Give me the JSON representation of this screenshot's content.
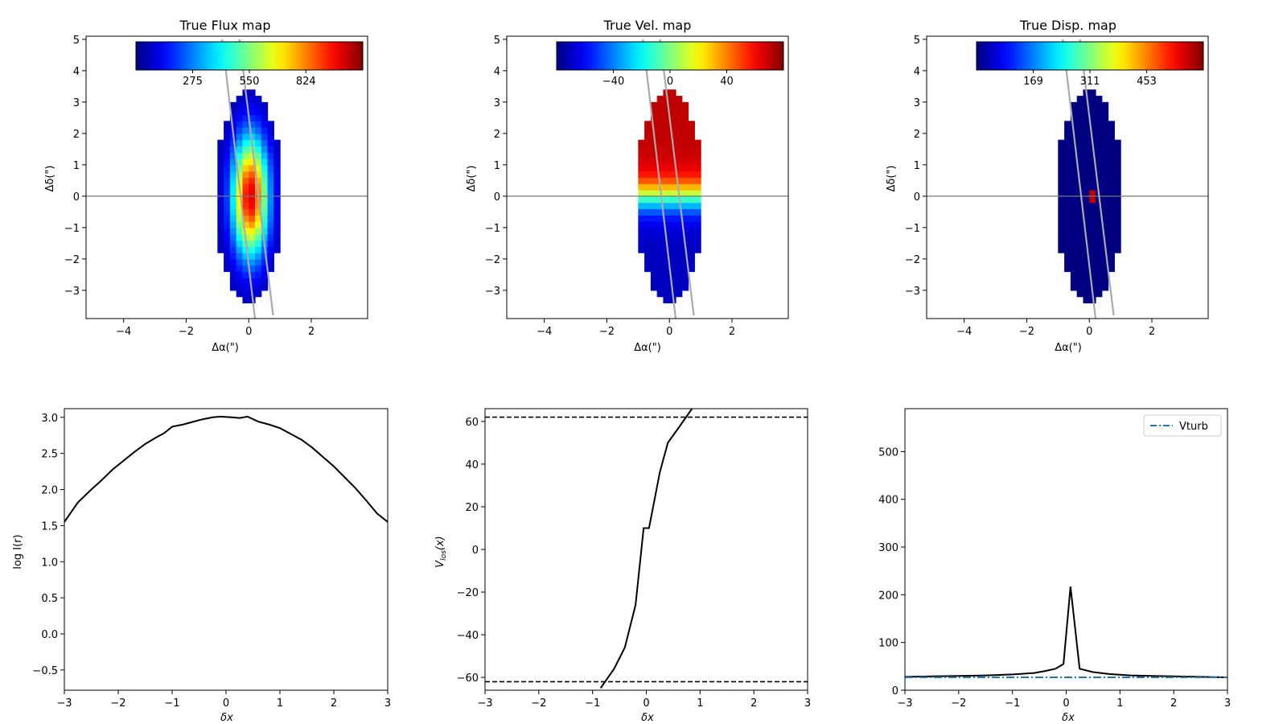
{
  "figure": {
    "background": "#ffffff",
    "colormap": "jet"
  },
  "maps": [
    {
      "id": "flux",
      "title": "True Flux map",
      "xlabel": "Δα(\")",
      "ylabel": "Δδ(\")",
      "xlim": [
        -5.2,
        3.8
      ],
      "ylim": [
        -3.9,
        5.1
      ],
      "xticks": [
        -4,
        -2,
        0,
        2
      ],
      "xtick_labels": [
        "−4",
        "−2",
        "0",
        "2"
      ],
      "yticks": [
        -3,
        -2,
        -1,
        0,
        1,
        2,
        3,
        4,
        5
      ],
      "ytick_labels": [
        "−3",
        "−2",
        "−1",
        "0",
        "1",
        "2",
        "3",
        "4",
        "5"
      ],
      "colorbar": {
        "min": 0,
        "max": 1100,
        "tick_values": [
          275,
          550,
          824
        ],
        "tick_labels": [
          "275",
          "550",
          "824"
        ]
      },
      "field": "flux"
    },
    {
      "id": "velocity",
      "title": "True Vel. map",
      "xlabel": "Δα(\")",
      "ylabel": "Δδ(\")",
      "xlim": [
        -5.2,
        3.8
      ],
      "ylim": [
        -3.9,
        5.1
      ],
      "xticks": [
        -4,
        -2,
        0,
        2
      ],
      "xtick_labels": [
        "−4",
        "−2",
        "0",
        "2"
      ],
      "yticks": [
        -3,
        -2,
        -1,
        0,
        1,
        2,
        3,
        4,
        5
      ],
      "ytick_labels": [
        "−3",
        "−2",
        "−1",
        "0",
        "1",
        "2",
        "3",
        "4",
        "5"
      ],
      "colorbar": {
        "min": -80,
        "max": 80,
        "tick_values": [
          -40,
          0,
          40
        ],
        "tick_labels": [
          "−40",
          "0",
          "40"
        ]
      },
      "field": "velocity"
    },
    {
      "id": "dispersion",
      "title": "True Disp. map",
      "xlabel": "Δα(\")",
      "ylabel": "Δδ(\")",
      "xlim": [
        -5.2,
        3.8
      ],
      "ylim": [
        -3.9,
        5.1
      ],
      "xticks": [
        -4,
        -2,
        0,
        2
      ],
      "xtick_labels": [
        "−4",
        "−2",
        "0",
        "2"
      ],
      "yticks": [
        -3,
        -2,
        -1,
        0,
        1,
        2,
        3,
        4,
        5
      ],
      "ytick_labels": [
        "−3",
        "−2",
        "−1",
        "0",
        "1",
        "2",
        "3",
        "4",
        "5"
      ],
      "colorbar": {
        "min": 27,
        "max": 595,
        "tick_values": [
          169,
          311,
          453
        ],
        "tick_labels": [
          "169",
          "311",
          "453"
        ]
      },
      "field": "dispersion"
    }
  ],
  "map_model": {
    "pixel_size": 0.2,
    "center": [
      0.0,
      0.0
    ],
    "semi_major": 3.3,
    "semi_minor": 1.0,
    "flux_peak": 1000,
    "flux_floor": 35,
    "velocity_amplitude": 70,
    "dispersion_base": 28,
    "dispersion_center": 560,
    "slit_lines": [
      {
        "from": [
          -0.85,
          5.0
        ],
        "to": [
          0.2,
          -3.9
        ]
      },
      {
        "from": [
          -0.3,
          5.0
        ],
        "to": [
          0.78,
          -3.8
        ]
      }
    ],
    "zero_line_y": 0
  },
  "chart_data": [
    {
      "type": "line",
      "title": "",
      "xlabel": "δx",
      "ylabel": "log I(r)",
      "xlim": [
        -3,
        3
      ],
      "ylim": [
        -0.78,
        3.12
      ],
      "xticks": [
        -3,
        -2,
        -1,
        0,
        1,
        2,
        3
      ],
      "xtick_labels": [
        "−3",
        "−2",
        "−1",
        "0",
        "1",
        "2",
        "3"
      ],
      "yticks": [
        -0.5,
        0.0,
        0.5,
        1.0,
        1.5,
        2.0,
        2.5,
        3.0
      ],
      "ytick_labels": [
        "−0.5",
        "0.0",
        "0.5",
        "1.0",
        "1.5",
        "2.0",
        "2.5",
        "3.0"
      ],
      "series": [
        {
          "color": "#000000",
          "style": "solid",
          "x": [
            -3.0,
            -2.75,
            -2.5,
            -2.35,
            -2.1,
            -1.9,
            -1.7,
            -1.5,
            -1.3,
            -1.15,
            -1.0,
            -0.8,
            -0.6,
            -0.45,
            -0.25,
            -0.1,
            0.1,
            0.25,
            0.4,
            0.6,
            0.8,
            1.0,
            1.2,
            1.4,
            1.6,
            1.8,
            2.0,
            2.2,
            2.4,
            2.6,
            2.8,
            3.0
          ],
          "y": [
            1.55,
            1.82,
            2.0,
            2.1,
            2.28,
            2.4,
            2.52,
            2.63,
            2.72,
            2.78,
            2.87,
            2.9,
            2.94,
            2.97,
            3.0,
            3.01,
            3.0,
            2.99,
            3.01,
            2.94,
            2.9,
            2.85,
            2.77,
            2.69,
            2.58,
            2.45,
            2.32,
            2.17,
            2.02,
            1.85,
            1.67,
            1.55
          ]
        }
      ]
    },
    {
      "type": "line",
      "title": "",
      "xlabel": "δx",
      "ylabel": "V_los(x)",
      "xlim": [
        -3,
        3
      ],
      "ylim": [
        -66,
        66
      ],
      "xticks": [
        -3,
        -2,
        -1,
        0,
        1,
        2,
        3
      ],
      "xtick_labels": [
        "−3",
        "−2",
        "−1",
        "0",
        "1",
        "2",
        "3"
      ],
      "yticks": [
        -60,
        -40,
        -20,
        0,
        20,
        40,
        60
      ],
      "ytick_labels": [
        "−60",
        "−40",
        "−20",
        "0",
        "20",
        "40",
        "60"
      ],
      "hlines": [
        62,
        -62
      ],
      "series": [
        {
          "color": "#000000",
          "style": "solid",
          "x": [
            -0.85,
            -0.6,
            -0.4,
            -0.2,
            -0.05,
            0.05,
            0.25,
            0.4,
            0.6,
            0.85
          ],
          "y": [
            -65,
            -56,
            -46,
            -26,
            10,
            10,
            36,
            50,
            57,
            66
          ]
        }
      ]
    },
    {
      "type": "line",
      "title": "",
      "xlabel": "δx",
      "ylabel": "",
      "xlim": [
        -3,
        3
      ],
      "ylim": [
        0,
        590
      ],
      "xticks": [
        -3,
        -2,
        -1,
        0,
        1,
        2,
        3
      ],
      "xtick_labels": [
        "−3",
        "−2",
        "−1",
        "0",
        "1",
        "2",
        "3"
      ],
      "yticks": [
        0,
        100,
        200,
        300,
        400,
        500
      ],
      "ytick_labels": [
        "0",
        "100",
        "200",
        "300",
        "400",
        "500"
      ],
      "legend": {
        "placement": "top-right",
        "entries": [
          "Vturb"
        ]
      },
      "series": [
        {
          "color": "#000000",
          "style": "solid",
          "x": [
            -3.0,
            -2.5,
            -2.0,
            -1.5,
            -1.0,
            -0.6,
            -0.4,
            -0.2,
            -0.05,
            0.08,
            0.25,
            0.5,
            0.8,
            1.2,
            1.6,
            2.0,
            2.5,
            3.0
          ],
          "y": [
            28,
            29,
            30,
            31,
            33,
            36,
            40,
            45,
            55,
            217,
            45,
            38,
            34,
            31,
            30,
            29,
            28,
            27
          ]
        },
        {
          "name": "Vturb",
          "color": "#1f77b4",
          "style": "dashdot",
          "x": [
            -3.0,
            3.0
          ],
          "y": [
            27,
            27
          ]
        }
      ]
    }
  ]
}
